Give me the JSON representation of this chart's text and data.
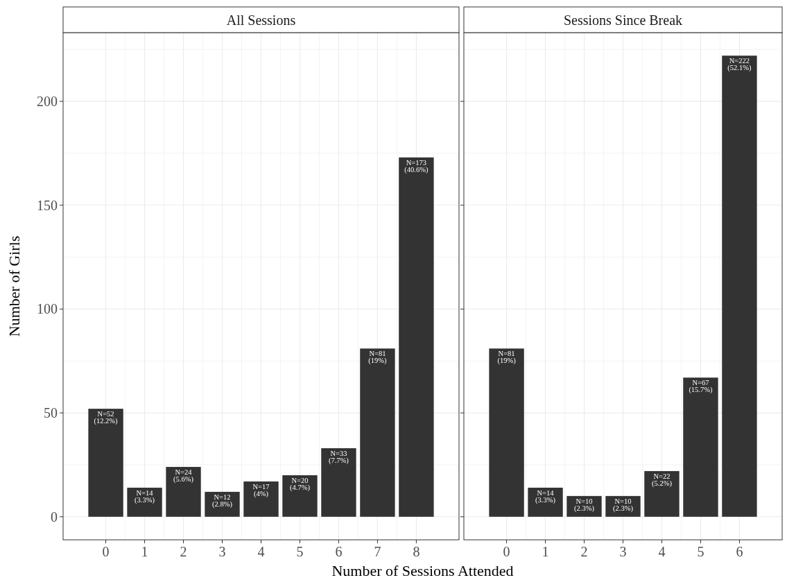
{
  "chart_data": [
    {
      "type": "bar",
      "title": "All Sessions",
      "xlabel": "Number of Sessions Attended",
      "ylabel": "Number of Girls",
      "categories": [
        "0",
        "1",
        "2",
        "3",
        "4",
        "5",
        "6",
        "7",
        "8"
      ],
      "values": [
        52,
        14,
        24,
        12,
        17,
        20,
        33,
        81,
        173
      ],
      "value_labels": [
        "N=52\n(12.2%)",
        "N=14\n(3.3%)",
        "N=24\n(5.6%)",
        "N=12\n(2.8%)",
        "N=17\n(4%)",
        "N=20\n(4.7%)",
        "N=33\n(7.7%)",
        "N=81\n(19%)",
        "N=173\n(40.6%)"
      ],
      "color": "#333333",
      "ylim": [
        -11.1,
        233.1
      ],
      "yticks": [
        0,
        50,
        100,
        150,
        200
      ],
      "grid": true
    },
    {
      "type": "bar",
      "title": "Sessions Since Break",
      "categories": [
        "0",
        "1",
        "2",
        "3",
        "4",
        "5",
        "6"
      ],
      "values": [
        81,
        14,
        10,
        10,
        22,
        67,
        222
      ],
      "value_labels": [
        "N=81\n(19%)",
        "N=14\n(3.3%)",
        "N=10\n(2.3%)",
        "N=10\n(2.3%)",
        "N=22\n(5.2%)",
        "N=67\n(15.7%)",
        "N=222\n(52.1%)"
      ],
      "color": "#333333",
      "ylim": [
        -11.1,
        233.1
      ],
      "yticks": [
        0,
        50,
        100,
        150,
        200
      ],
      "grid": true,
      "tick_labels": "x"
    }
  ]
}
